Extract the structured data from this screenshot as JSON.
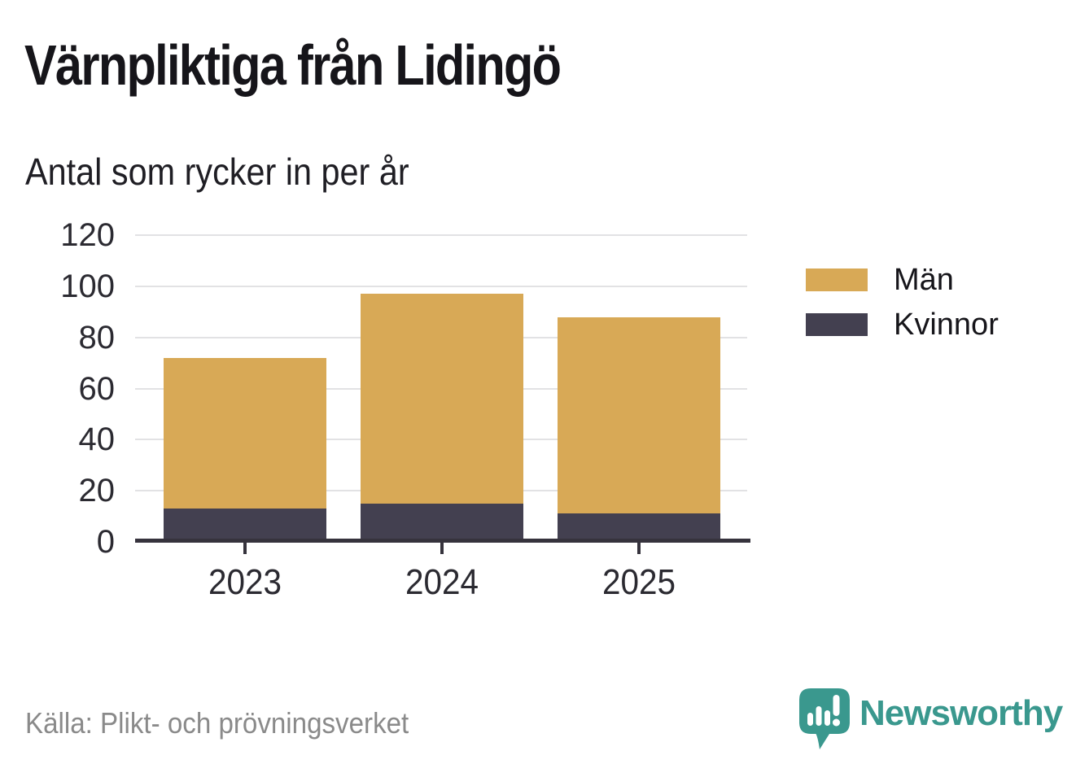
{
  "header": {
    "title": "Värnpliktiga från Lidingö",
    "subtitle": "Antal som rycker in per år"
  },
  "chart_data": {
    "type": "bar",
    "stacked": true,
    "title": "Värnpliktiga från Lidingö",
    "subtitle": "Antal som rycker in per år",
    "categories": [
      "2023",
      "2024",
      "2025"
    ],
    "series": [
      {
        "name": "Män",
        "color": "#D8A956",
        "values": [
          59,
          82,
          77
        ]
      },
      {
        "name": "Kvinnor",
        "color": "#434050",
        "values": [
          13,
          15,
          11
        ]
      }
    ],
    "stack_bottom_to_top": [
      "Kvinnor",
      "Män"
    ],
    "totals": [
      72,
      97,
      88
    ],
    "xlabel": "",
    "ylabel": "",
    "ylim": [
      0,
      120
    ],
    "yticks": [
      0,
      20,
      40,
      60,
      80,
      100,
      120
    ],
    "grid": "horizontal",
    "legend_position": "right"
  },
  "footer": {
    "source": "Källa: Plikt- och prövningsverket",
    "brand": "Newsworthy"
  },
  "colors": {
    "men": "#D8A956",
    "women": "#434050",
    "axis": "#36333d",
    "gridline": "#e2e2e4",
    "text": "#16151a",
    "muted_text": "#8a8a8a",
    "brand_teal": "#3a988e"
  }
}
